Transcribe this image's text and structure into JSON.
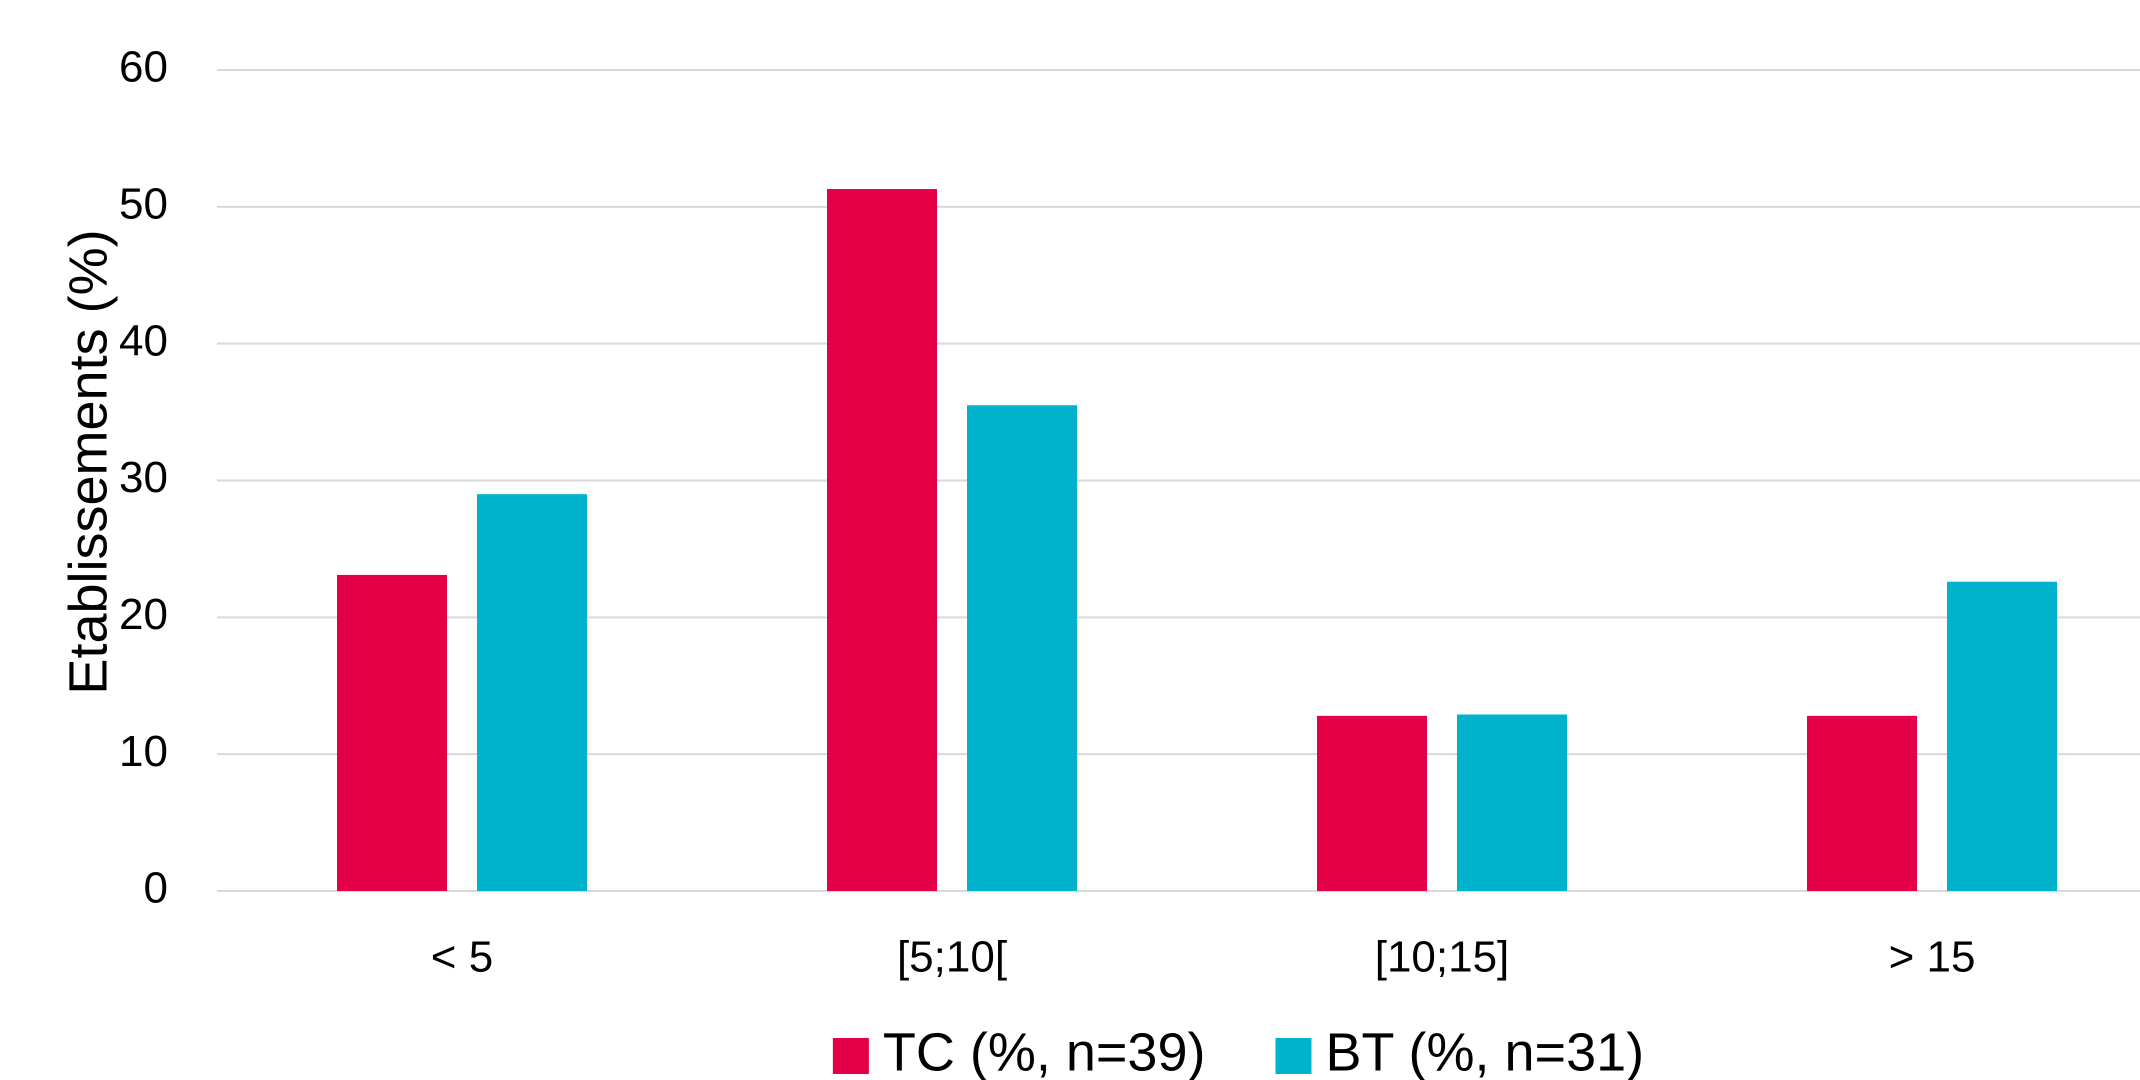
{
  "chart_data": {
    "type": "bar",
    "title": "",
    "xlabel": "",
    "ylabel": "Etablissements (%)",
    "ylim": [
      0,
      60
    ],
    "yticks": [
      0,
      10,
      20,
      30,
      40,
      50,
      60
    ],
    "grid": true,
    "legend_position": "bottom",
    "categories": [
      "< 5",
      "[5;10[",
      "[10;15]",
      "> 15"
    ],
    "series": [
      {
        "name": "TC (%, n=39)",
        "color": "#e40046",
        "values": [
          23.1,
          51.3,
          12.8,
          12.8
        ]
      },
      {
        "name": "BT (%, n=31)",
        "color": "#00b2cb",
        "values": [
          29.0,
          35.5,
          12.9,
          22.6
        ]
      }
    ]
  }
}
